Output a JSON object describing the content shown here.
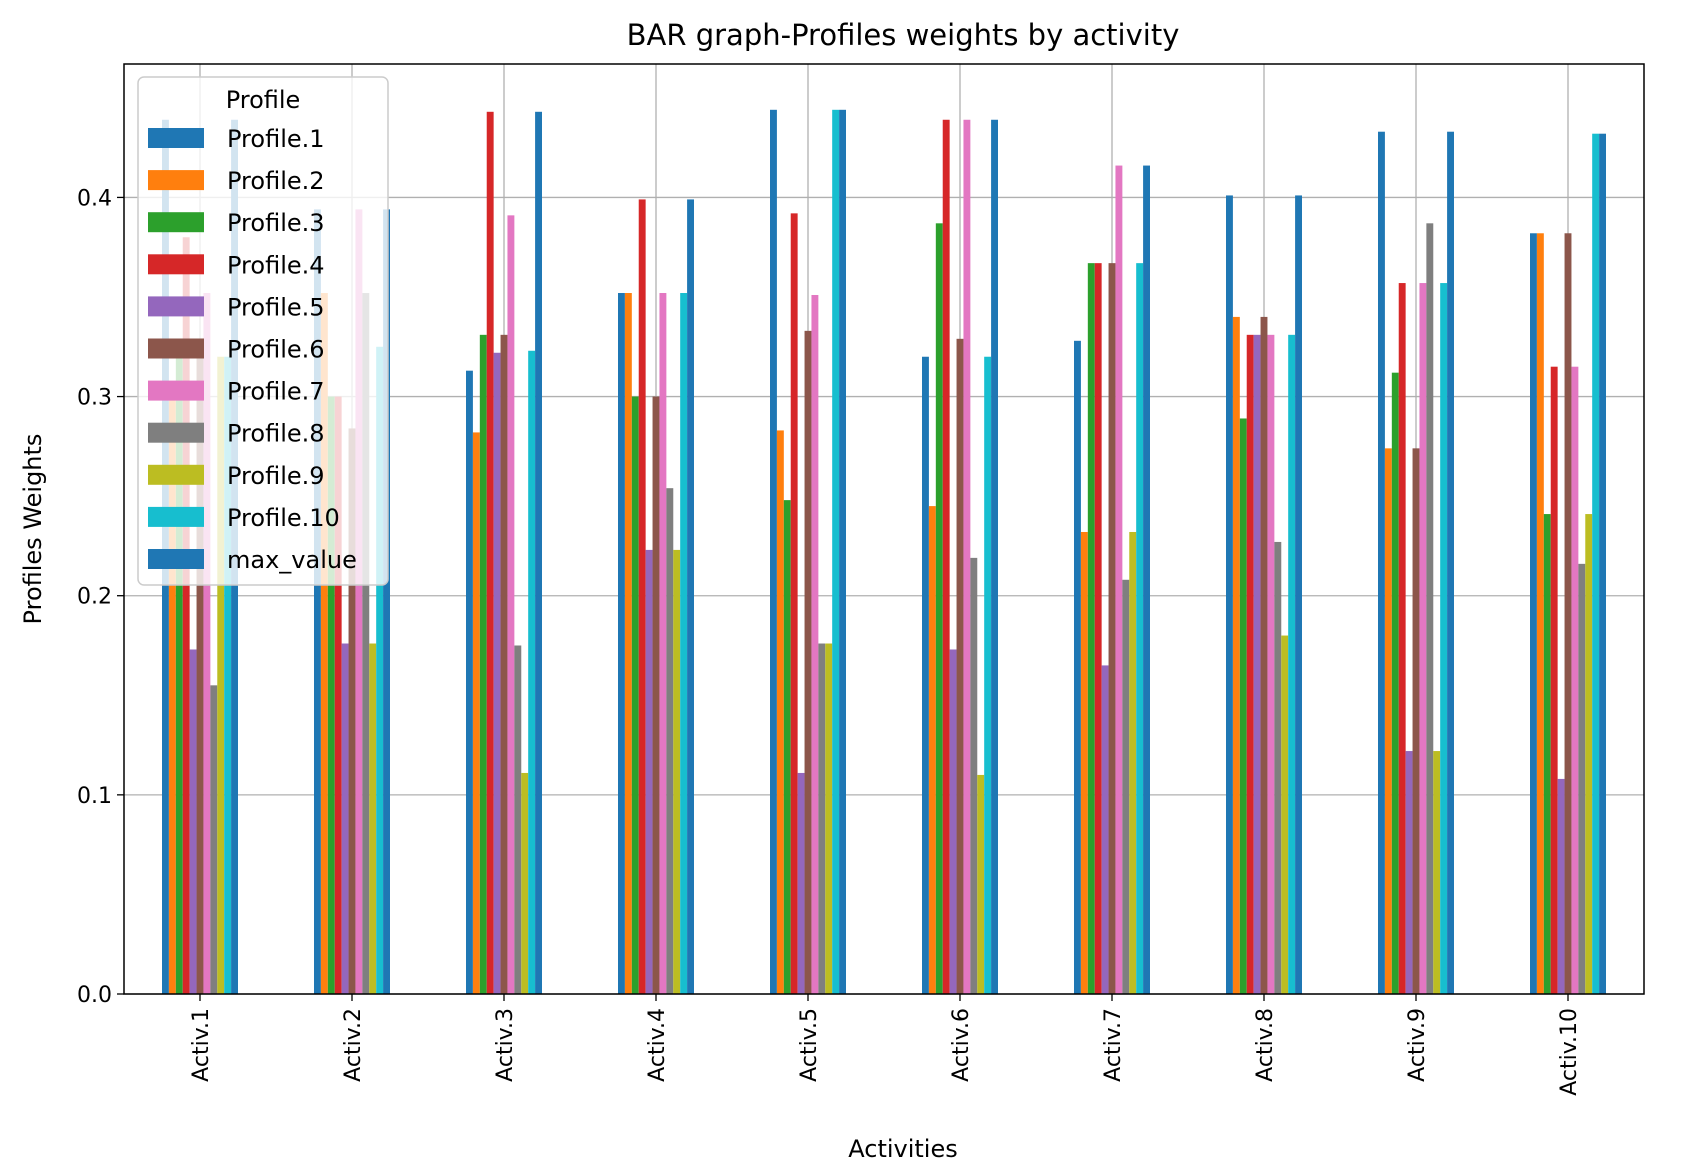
{
  "chart_data": {
    "type": "bar",
    "title": "BAR graph-Profiles weights by activity",
    "xlabel": "Activities",
    "ylabel": "Profiles Weights",
    "ylim": [
      0,
      0.467
    ],
    "yticks": [
      0.0,
      0.1,
      0.2,
      0.3,
      0.4
    ],
    "ytick_labels": [
      "0.0",
      "0.1",
      "0.2",
      "0.3",
      "0.4"
    ],
    "grid": true,
    "legend": {
      "title": "Profile",
      "placement": "top-left"
    },
    "categories": [
      "Activ.1",
      "Activ.2",
      "Activ.3",
      "Activ.4",
      "Activ.5",
      "Activ.6",
      "Activ.7",
      "Activ.8",
      "Activ.9",
      "Activ.10"
    ],
    "series": [
      {
        "name": "Profile.1",
        "color": "#1f77b4",
        "values": [
          0.439,
          0.394,
          0.313,
          0.352,
          0.444,
          0.32,
          0.328,
          0.401,
          0.433,
          0.382
        ]
      },
      {
        "name": "Profile.2",
        "color": "#ff7f0e",
        "values": [
          0.3,
          0.352,
          0.282,
          0.352,
          0.283,
          0.245,
          0.232,
          0.34,
          0.274,
          0.382
        ]
      },
      {
        "name": "Profile.3",
        "color": "#2ca02c",
        "values": [
          0.328,
          0.3,
          0.331,
          0.3,
          0.248,
          0.387,
          0.367,
          0.289,
          0.312,
          0.241
        ]
      },
      {
        "name": "Profile.4",
        "color": "#d62728",
        "values": [
          0.38,
          0.3,
          0.443,
          0.399,
          0.392,
          0.439,
          0.367,
          0.331,
          0.357,
          0.315
        ]
      },
      {
        "name": "Profile.5",
        "color": "#9467bd",
        "values": [
          0.173,
          0.176,
          0.322,
          0.223,
          0.111,
          0.173,
          0.165,
          0.331,
          0.122,
          0.108
        ]
      },
      {
        "name": "Profile.6",
        "color": "#8c564b",
        "values": [
          0.328,
          0.284,
          0.331,
          0.3,
          0.333,
          0.329,
          0.367,
          0.34,
          0.274,
          0.382
        ]
      },
      {
        "name": "Profile.7",
        "color": "#e377c2",
        "values": [
          0.352,
          0.394,
          0.391,
          0.352,
          0.351,
          0.439,
          0.416,
          0.331,
          0.357,
          0.315
        ]
      },
      {
        "name": "Profile.8",
        "color": "#7f7f7f",
        "values": [
          0.155,
          0.352,
          0.175,
          0.254,
          0.176,
          0.219,
          0.208,
          0.227,
          0.387,
          0.216
        ]
      },
      {
        "name": "Profile.9",
        "color": "#bcbd22",
        "values": [
          0.32,
          0.176,
          0.111,
          0.223,
          0.176,
          0.11,
          0.232,
          0.18,
          0.122,
          0.241
        ]
      },
      {
        "name": "Profile.10",
        "color": "#17becf",
        "values": [
          0.32,
          0.325,
          0.323,
          0.352,
          0.444,
          0.32,
          0.367,
          0.331,
          0.357,
          0.432
        ]
      },
      {
        "name": "max_value",
        "color": "#1f77b4",
        "values": [
          0.439,
          0.394,
          0.443,
          0.399,
          0.444,
          0.439,
          0.416,
          0.401,
          0.433,
          0.432
        ]
      }
    ]
  }
}
